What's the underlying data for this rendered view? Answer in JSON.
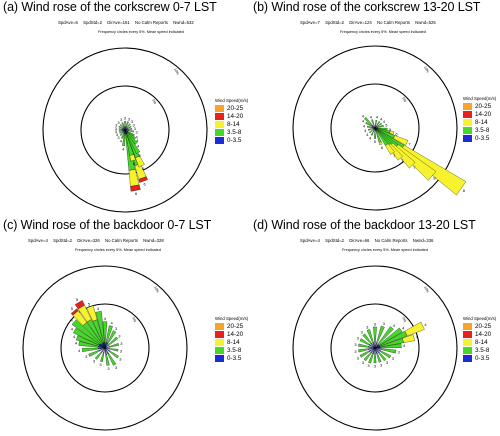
{
  "legend": {
    "title": "Wind Speed(m/s)",
    "bins": [
      {
        "label": "20-25",
        "color": "#f7a42c"
      },
      {
        "label": "14-20",
        "color": "#e8211d"
      },
      {
        "label": "8-14",
        "color": "#f6f22e"
      },
      {
        "label": "3.5-8",
        "color": "#48d52c"
      },
      {
        "label": "0-3.5",
        "color": "#1d2ad8"
      }
    ]
  },
  "freq_note": "Frequency circles every 5%. Mean speed indicated",
  "ring_labels": [
    "5%",
    "10%"
  ],
  "chart_data": [
    {
      "type": "windrose",
      "title": "(a)  Wind rose of the corkscrew 0-7 LST",
      "stats": {
        "spd_ave": "SpdAve=6",
        "spd_std": "SpdStd=2",
        "dir_ave": "DirAve=161",
        "calm": "No Calm Reports",
        "nwnd": "Nwnd=532"
      },
      "ring_step_percent": 5,
      "rays": [
        {
          "dir": 170,
          "freq": 7.0,
          "mean": 6,
          "blue": 0.06,
          "green": 0.6,
          "yellow": 0.26,
          "red": 0.08
        },
        {
          "dir": 160,
          "freq": 6.2,
          "mean": 6,
          "blue": 0.08,
          "green": 0.6,
          "yellow": 0.26,
          "red": 0.06
        },
        {
          "dir": 155,
          "freq": 4.5,
          "mean": 5,
          "blue": 0.1,
          "green": 0.65,
          "yellow": 0.25,
          "red": 0.0
        },
        {
          "dir": 150,
          "freq": 3.0,
          "mean": 5,
          "blue": 0.15,
          "green": 0.85,
          "yellow": 0.0,
          "red": 0.0
        },
        {
          "dir": 165,
          "freq": 3.6,
          "mean": 5,
          "blue": 0.12,
          "green": 0.7,
          "yellow": 0.18,
          "red": 0.0
        },
        {
          "dir": 140,
          "freq": 2.0,
          "mean": 4,
          "blue": 0.2,
          "green": 0.8,
          "yellow": 0.0,
          "red": 0.0
        },
        {
          "dir": 130,
          "freq": 1.5,
          "mean": 4,
          "blue": 0.25,
          "green": 0.75,
          "yellow": 0.0,
          "red": 0.0
        },
        {
          "dir": 120,
          "freq": 1.2,
          "mean": 4,
          "blue": 0.3,
          "green": 0.7,
          "yellow": 0.0,
          "red": 0.0
        },
        {
          "dir": 100,
          "freq": 1.0,
          "mean": 3,
          "blue": 0.4,
          "green": 0.6,
          "yellow": 0.0,
          "red": 0.0
        },
        {
          "dir": 80,
          "freq": 0.8,
          "mean": 3,
          "blue": 0.4,
          "green": 0.6,
          "yellow": 0.0,
          "red": 0.0
        },
        {
          "dir": 60,
          "freq": 0.8,
          "mean": 3,
          "blue": 0.4,
          "green": 0.6,
          "yellow": 0.0,
          "red": 0.0
        },
        {
          "dir": 40,
          "freq": 0.9,
          "mean": 3,
          "blue": 0.4,
          "green": 0.6,
          "yellow": 0.0,
          "red": 0.0
        },
        {
          "dir": 20,
          "freq": 1.0,
          "mean": 3,
          "blue": 0.4,
          "green": 0.6,
          "yellow": 0.0,
          "red": 0.0
        },
        {
          "dir": 0,
          "freq": 1.0,
          "mean": 3,
          "blue": 0.4,
          "green": 0.6,
          "yellow": 0.0,
          "red": 0.0
        },
        {
          "dir": 340,
          "freq": 0.9,
          "mean": 3,
          "blue": 0.4,
          "green": 0.6,
          "yellow": 0.0,
          "red": 0.0
        },
        {
          "dir": 320,
          "freq": 0.8,
          "mean": 3,
          "blue": 0.4,
          "green": 0.6,
          "yellow": 0.0,
          "red": 0.0
        },
        {
          "dir": 300,
          "freq": 0.8,
          "mean": 3,
          "blue": 0.4,
          "green": 0.6,
          "yellow": 0.0,
          "red": 0.0
        },
        {
          "dir": 280,
          "freq": 0.7,
          "mean": 3,
          "blue": 0.4,
          "green": 0.6,
          "yellow": 0.0,
          "red": 0.0
        },
        {
          "dir": 260,
          "freq": 0.7,
          "mean": 3,
          "blue": 0.4,
          "green": 0.6,
          "yellow": 0.0,
          "red": 0.0
        },
        {
          "dir": 240,
          "freq": 0.7,
          "mean": 3,
          "blue": 0.4,
          "green": 0.6,
          "yellow": 0.0,
          "red": 0.0
        },
        {
          "dir": 220,
          "freq": 0.8,
          "mean": 3,
          "blue": 0.4,
          "green": 0.6,
          "yellow": 0.0,
          "red": 0.0
        },
        {
          "dir": 200,
          "freq": 1.0,
          "mean": 4,
          "blue": 0.3,
          "green": 0.7,
          "yellow": 0.0,
          "red": 0.0
        },
        {
          "dir": 185,
          "freq": 1.8,
          "mean": 4,
          "blue": 0.25,
          "green": 0.75,
          "yellow": 0.0,
          "red": 0.0
        }
      ]
    },
    {
      "type": "windrose",
      "title": "(b)  Wind rose of the corkscrew 13-20 LST",
      "stats": {
        "spd_ave": "SpdAve=7",
        "spd_std": "SpdStd=2",
        "dir_ave": "DirAve=124",
        "calm": "No Calm Reports",
        "nwnd": "Nwnd=525"
      },
      "ring_step_percent": 5,
      "rays": [
        {
          "dir": 125,
          "freq": 12.0,
          "mean": 8,
          "blue": 0.02,
          "green": 0.3,
          "yellow": 0.68,
          "red": 0.0
        },
        {
          "dir": 130,
          "freq": 8.5,
          "mean": 8,
          "blue": 0.03,
          "green": 0.35,
          "yellow": 0.62,
          "red": 0.0
        },
        {
          "dir": 135,
          "freq": 6.0,
          "mean": 7,
          "blue": 0.04,
          "green": 0.4,
          "yellow": 0.56,
          "red": 0.0
        },
        {
          "dir": 140,
          "freq": 4.5,
          "mean": 7,
          "blue": 0.05,
          "green": 0.5,
          "yellow": 0.45,
          "red": 0.0
        },
        {
          "dir": 145,
          "freq": 3.5,
          "mean": 7,
          "blue": 0.06,
          "green": 0.6,
          "yellow": 0.34,
          "red": 0.0
        },
        {
          "dir": 115,
          "freq": 4.0,
          "mean": 7,
          "blue": 0.05,
          "green": 0.55,
          "yellow": 0.4,
          "red": 0.0
        },
        {
          "dir": 105,
          "freq": 2.2,
          "mean": 6,
          "blue": 0.1,
          "green": 0.7,
          "yellow": 0.2,
          "red": 0.0
        },
        {
          "dir": 95,
          "freq": 1.4,
          "mean": 5,
          "blue": 0.2,
          "green": 0.8,
          "yellow": 0.0,
          "red": 0.0
        },
        {
          "dir": 75,
          "freq": 1.0,
          "mean": 5,
          "blue": 0.3,
          "green": 0.7,
          "yellow": 0.0,
          "red": 0.0
        },
        {
          "dir": 55,
          "freq": 0.9,
          "mean": 4,
          "blue": 0.3,
          "green": 0.7,
          "yellow": 0.0,
          "red": 0.0
        },
        {
          "dir": 35,
          "freq": 0.9,
          "mean": 4,
          "blue": 0.3,
          "green": 0.7,
          "yellow": 0.0,
          "red": 0.0
        },
        {
          "dir": 10,
          "freq": 0.9,
          "mean": 4,
          "blue": 0.3,
          "green": 0.7,
          "yellow": 0.0,
          "red": 0.0
        },
        {
          "dir": 340,
          "freq": 1.0,
          "mean": 4,
          "blue": 0.3,
          "green": 0.7,
          "yellow": 0.0,
          "red": 0.0
        },
        {
          "dir": 315,
          "freq": 1.6,
          "mean": 4,
          "blue": 0.25,
          "green": 0.75,
          "yellow": 0.0,
          "red": 0.0
        },
        {
          "dir": 300,
          "freq": 1.2,
          "mean": 4,
          "blue": 0.3,
          "green": 0.7,
          "yellow": 0.0,
          "red": 0.0
        },
        {
          "dir": 280,
          "freq": 0.9,
          "mean": 4,
          "blue": 0.3,
          "green": 0.7,
          "yellow": 0.0,
          "red": 0.0
        },
        {
          "dir": 255,
          "freq": 0.8,
          "mean": 4,
          "blue": 0.3,
          "green": 0.7,
          "yellow": 0.0,
          "red": 0.0
        },
        {
          "dir": 230,
          "freq": 0.8,
          "mean": 4,
          "blue": 0.3,
          "green": 0.7,
          "yellow": 0.0,
          "red": 0.0
        },
        {
          "dir": 205,
          "freq": 0.9,
          "mean": 4,
          "blue": 0.3,
          "green": 0.7,
          "yellow": 0.0,
          "red": 0.0
        },
        {
          "dir": 180,
          "freq": 1.2,
          "mean": 5,
          "blue": 0.25,
          "green": 0.75,
          "yellow": 0.0,
          "red": 0.0
        },
        {
          "dir": 160,
          "freq": 2.0,
          "mean": 6,
          "blue": 0.15,
          "green": 0.7,
          "yellow": 0.15,
          "red": 0.0
        }
      ]
    },
    {
      "type": "windrose",
      "title": "(c)  Wind rose of the backdoor 0-7 LST",
      "stats": {
        "spd_ave": "SpdAve=4",
        "spd_std": "SpdStd=2",
        "dir_ave": "DirAve=326",
        "calm": "No Calm Reports",
        "nwnd": "Nwnd=328"
      },
      "ring_step_percent": 5,
      "rays": [
        {
          "dir": 330,
          "freq": 6.0,
          "mean": 5,
          "blue": 0.1,
          "green": 0.5,
          "yellow": 0.3,
          "red": 0.1
        },
        {
          "dir": 320,
          "freq": 5.5,
          "mean": 5,
          "blue": 0.1,
          "green": 0.55,
          "yellow": 0.3,
          "red": 0.05
        },
        {
          "dir": 340,
          "freq": 5.0,
          "mean": 5,
          "blue": 0.12,
          "green": 0.55,
          "yellow": 0.33,
          "red": 0.0
        },
        {
          "dir": 310,
          "freq": 4.6,
          "mean": 4,
          "blue": 0.15,
          "green": 0.85,
          "yellow": 0.0,
          "red": 0.0
        },
        {
          "dir": 300,
          "freq": 4.0,
          "mean": 4,
          "blue": 0.2,
          "green": 0.8,
          "yellow": 0.0,
          "red": 0.0
        },
        {
          "dir": 290,
          "freq": 3.4,
          "mean": 4,
          "blue": 0.2,
          "green": 0.8,
          "yellow": 0.0,
          "red": 0.0
        },
        {
          "dir": 350,
          "freq": 4.2,
          "mean": 4,
          "blue": 0.15,
          "green": 0.85,
          "yellow": 0.0,
          "red": 0.0
        },
        {
          "dir": 0,
          "freq": 3.0,
          "mean": 4,
          "blue": 0.2,
          "green": 0.8,
          "yellow": 0.0,
          "red": 0.0
        },
        {
          "dir": 15,
          "freq": 2.6,
          "mean": 4,
          "blue": 0.25,
          "green": 0.75,
          "yellow": 0.0,
          "red": 0.0
        },
        {
          "dir": 30,
          "freq": 2.2,
          "mean": 3,
          "blue": 0.3,
          "green": 0.7,
          "yellow": 0.0,
          "red": 0.0
        },
        {
          "dir": 50,
          "freq": 1.8,
          "mean": 3,
          "blue": 0.3,
          "green": 0.7,
          "yellow": 0.0,
          "red": 0.0
        },
        {
          "dir": 75,
          "freq": 1.6,
          "mean": 3,
          "blue": 0.35,
          "green": 0.65,
          "yellow": 0.0,
          "red": 0.0
        },
        {
          "dir": 100,
          "freq": 1.5,
          "mean": 3,
          "blue": 0.35,
          "green": 0.65,
          "yellow": 0.0,
          "red": 0.0
        },
        {
          "dir": 125,
          "freq": 1.8,
          "mean": 3,
          "blue": 0.35,
          "green": 0.65,
          "yellow": 0.0,
          "red": 0.0
        },
        {
          "dir": 150,
          "freq": 2.2,
          "mean": 3,
          "blue": 0.35,
          "green": 0.65,
          "yellow": 0.0,
          "red": 0.0
        },
        {
          "dir": 170,
          "freq": 2.0,
          "mean": 3,
          "blue": 0.4,
          "green": 0.6,
          "yellow": 0.0,
          "red": 0.0
        },
        {
          "dir": 195,
          "freq": 1.6,
          "mean": 3,
          "blue": 0.4,
          "green": 0.6,
          "yellow": 0.0,
          "red": 0.0
        },
        {
          "dir": 220,
          "freq": 1.6,
          "mean": 3,
          "blue": 0.4,
          "green": 0.6,
          "yellow": 0.0,
          "red": 0.0
        },
        {
          "dir": 245,
          "freq": 2.0,
          "mean": 3,
          "blue": 0.35,
          "green": 0.65,
          "yellow": 0.0,
          "red": 0.0
        },
        {
          "dir": 265,
          "freq": 2.6,
          "mean": 4,
          "blue": 0.3,
          "green": 0.7,
          "yellow": 0.0,
          "red": 0.0
        },
        {
          "dir": 280,
          "freq": 3.0,
          "mean": 4,
          "blue": 0.25,
          "green": 0.75,
          "yellow": 0.0,
          "red": 0.0
        }
      ]
    },
    {
      "type": "windrose",
      "title": "(d)  Wind rose of the backdoor 13-20 LST",
      "stats": {
        "spd_ave": "SpdAve=4",
        "spd_std": "SpdStd=2",
        "dir_ave": "DirAve=66",
        "calm": "No Calm Reports",
        "nwnd": "Nwnd=336"
      },
      "ring_step_percent": 5,
      "rays": [
        {
          "dir": 65,
          "freq": 6.0,
          "mean": 4,
          "blue": 0.1,
          "green": 0.55,
          "yellow": 0.35,
          "red": 0.0
        },
        {
          "dir": 75,
          "freq": 4.6,
          "mean": 4,
          "blue": 0.12,
          "green": 0.6,
          "yellow": 0.28,
          "red": 0.0
        },
        {
          "dir": 55,
          "freq": 3.6,
          "mean": 4,
          "blue": 0.15,
          "green": 0.85,
          "yellow": 0.0,
          "red": 0.0
        },
        {
          "dir": 85,
          "freq": 3.0,
          "mean": 4,
          "blue": 0.2,
          "green": 0.8,
          "yellow": 0.0,
          "red": 0.0
        },
        {
          "dir": 100,
          "freq": 2.4,
          "mean": 3,
          "blue": 0.3,
          "green": 0.7,
          "yellow": 0.0,
          "red": 0.0
        },
        {
          "dir": 120,
          "freq": 2.0,
          "mean": 3,
          "blue": 0.35,
          "green": 0.65,
          "yellow": 0.0,
          "red": 0.0
        },
        {
          "dir": 140,
          "freq": 1.8,
          "mean": 3,
          "blue": 0.4,
          "green": 0.6,
          "yellow": 0.0,
          "red": 0.0
        },
        {
          "dir": 160,
          "freq": 1.7,
          "mean": 3,
          "blue": 0.4,
          "green": 0.6,
          "yellow": 0.0,
          "red": 0.0
        },
        {
          "dir": 180,
          "freq": 1.7,
          "mean": 3,
          "blue": 0.4,
          "green": 0.6,
          "yellow": 0.0,
          "red": 0.0
        },
        {
          "dir": 200,
          "freq": 1.8,
          "mean": 3,
          "blue": 0.4,
          "green": 0.6,
          "yellow": 0.0,
          "red": 0.0
        },
        {
          "dir": 220,
          "freq": 1.8,
          "mean": 3,
          "blue": 0.4,
          "green": 0.6,
          "yellow": 0.0,
          "red": 0.0
        },
        {
          "dir": 240,
          "freq": 1.9,
          "mean": 3,
          "blue": 0.4,
          "green": 0.6,
          "yellow": 0.0,
          "red": 0.0
        },
        {
          "dir": 260,
          "freq": 1.9,
          "mean": 3,
          "blue": 0.4,
          "green": 0.6,
          "yellow": 0.0,
          "red": 0.0
        },
        {
          "dir": 280,
          "freq": 1.9,
          "mean": 3,
          "blue": 0.4,
          "green": 0.6,
          "yellow": 0.0,
          "red": 0.0
        },
        {
          "dir": 300,
          "freq": 1.9,
          "mean": 3,
          "blue": 0.4,
          "green": 0.6,
          "yellow": 0.0,
          "red": 0.0
        },
        {
          "dir": 320,
          "freq": 2.0,
          "mean": 3,
          "blue": 0.35,
          "green": 0.65,
          "yellow": 0.0,
          "red": 0.0
        },
        {
          "dir": 340,
          "freq": 2.2,
          "mean": 3,
          "blue": 0.3,
          "green": 0.7,
          "yellow": 0.0,
          "red": 0.0
        },
        {
          "dir": 0,
          "freq": 2.4,
          "mean": 3,
          "blue": 0.3,
          "green": 0.7,
          "yellow": 0.0,
          "red": 0.0
        },
        {
          "dir": 20,
          "freq": 2.6,
          "mean": 3,
          "blue": 0.25,
          "green": 0.75,
          "yellow": 0.0,
          "red": 0.0
        },
        {
          "dir": 40,
          "freq": 3.0,
          "mean": 4,
          "blue": 0.2,
          "green": 0.8,
          "yellow": 0.0,
          "red": 0.0
        }
      ]
    }
  ]
}
